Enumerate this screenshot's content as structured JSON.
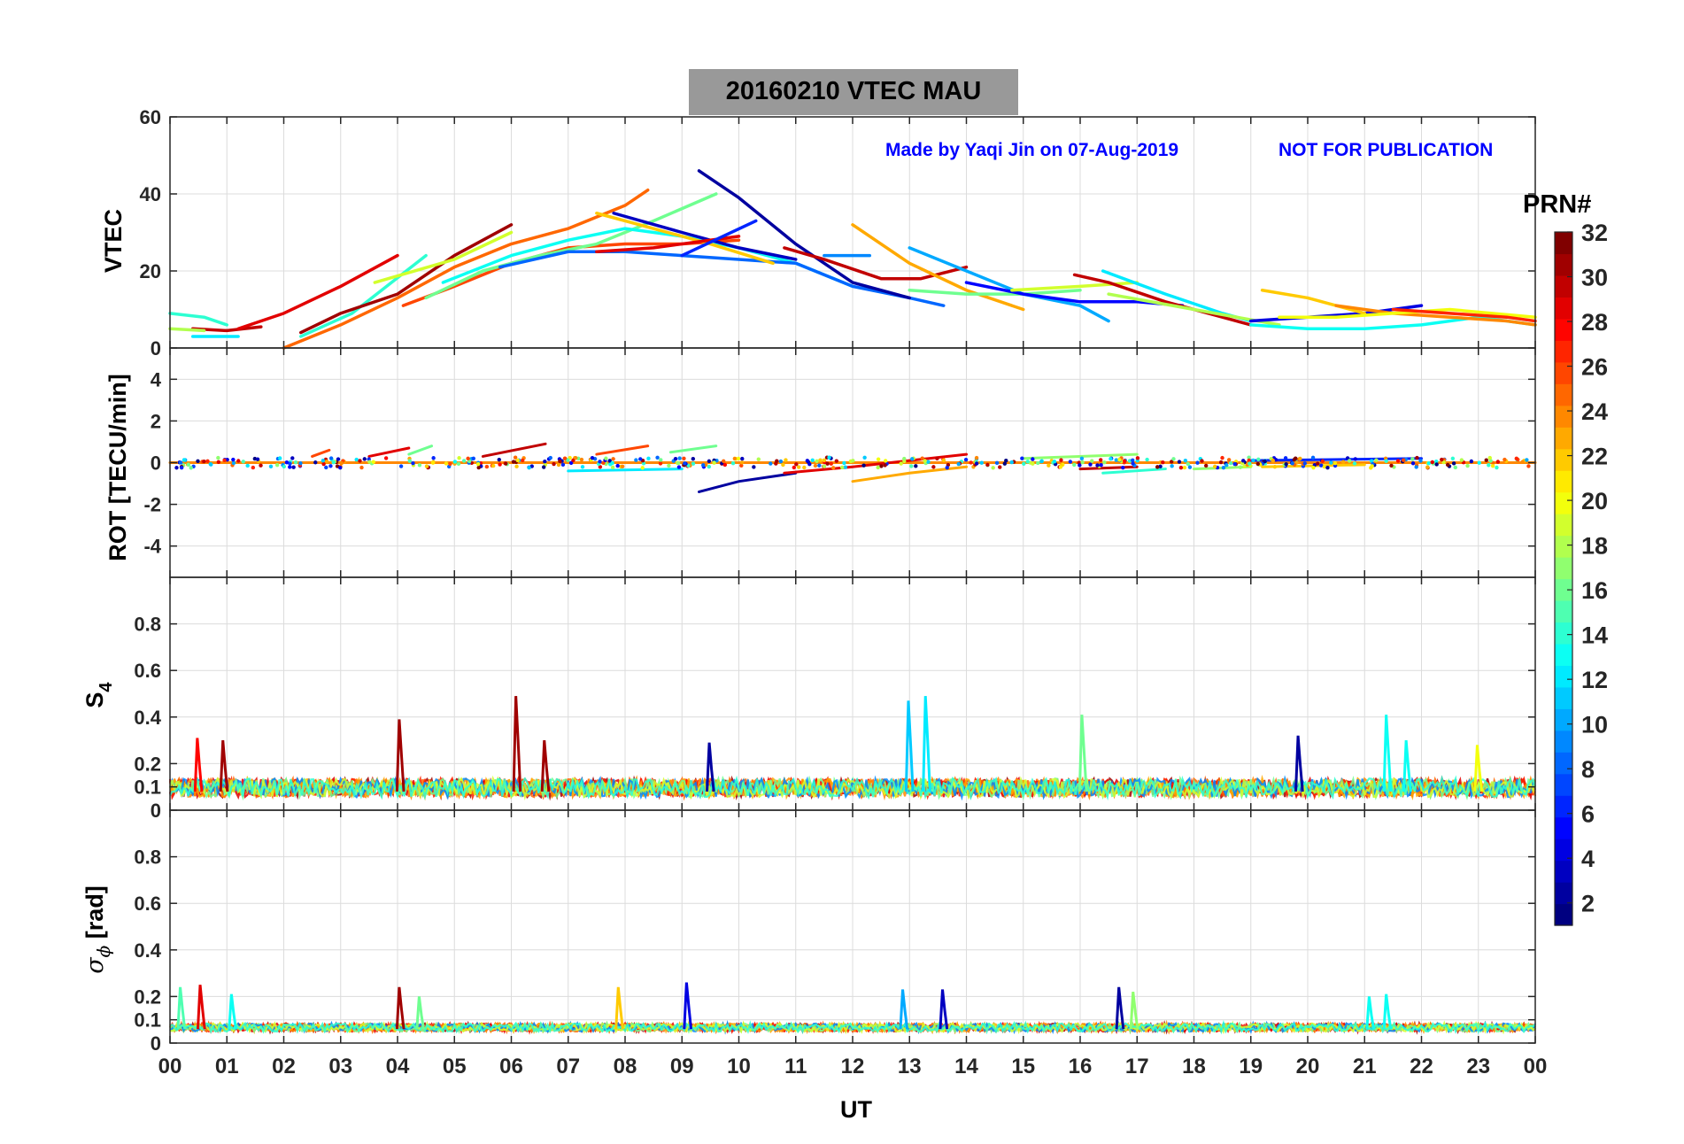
{
  "title": "20160210    VTEC  MAU",
  "credit": "Made by Yaqi Jin on 07-Aug-2019",
  "disclaimer": "NOT FOR PUBLICATION",
  "colorbar": {
    "label": "PRN#",
    "ticks": [
      "2",
      "4",
      "6",
      "8",
      "10",
      "12",
      "14",
      "16",
      "18",
      "20",
      "22",
      "24",
      "26",
      "28",
      "30",
      "32"
    ],
    "range": [
      1,
      32
    ],
    "colormap": "jet"
  },
  "chart_data": {
    "type": "line",
    "xlabel": "UT",
    "xlim": [
      0,
      24
    ],
    "xticks": [
      "00",
      "01",
      "02",
      "03",
      "04",
      "05",
      "06",
      "07",
      "08",
      "09",
      "10",
      "11",
      "12",
      "13",
      "14",
      "15",
      "16",
      "17",
      "18",
      "19",
      "20",
      "21",
      "22",
      "23",
      "00"
    ],
    "panels": [
      {
        "name": "vtec",
        "ylabel": "VTEC",
        "ylim": [
          0,
          60
        ],
        "yticks": [
          "0",
          "20",
          "40",
          "60"
        ],
        "ytick_values": [
          0,
          20,
          40,
          60
        ],
        "series": [
          {
            "prn": 30,
            "x": [
              0.4,
              1.0,
              1.6
            ],
            "y": [
              5,
              4.5,
              5.5
            ]
          },
          {
            "prn": 14,
            "x": [
              0.0,
              0.6,
              1.0
            ],
            "y": [
              9,
              8,
              6
            ]
          },
          {
            "prn": 18,
            "x": [
              0.0,
              0.6
            ],
            "y": [
              5,
              4.5
            ]
          },
          {
            "prn": 12,
            "x": [
              0.4,
              1.2
            ],
            "y": [
              3,
              3
            ]
          },
          {
            "prn": 29,
            "x": [
              1.2,
              2.0,
              3.0,
              4.0
            ],
            "y": [
              5,
              9,
              16,
              24
            ]
          },
          {
            "prn": 14,
            "x": [
              2.3,
              3.2,
              4.5
            ],
            "y": [
              3,
              9,
              24
            ]
          },
          {
            "prn": 31,
            "x": [
              2.3,
              3.0,
              4.0,
              5.0,
              6.0
            ],
            "y": [
              4,
              9,
              14,
              24,
              32
            ]
          },
          {
            "prn": 25,
            "x": [
              2.0,
              3.0,
              4.0,
              5.0,
              6.0,
              7.0,
              8.0,
              8.4
            ],
            "y": [
              0,
              6,
              13,
              21,
              27,
              31,
              37,
              41
            ]
          },
          {
            "prn": 26,
            "x": [
              4.1,
              5.0,
              6.0,
              7.0,
              8.0,
              9.0,
              10.0
            ],
            "y": [
              11,
              16,
              22,
              26,
              27,
              27,
              28
            ]
          },
          {
            "prn": 19,
            "x": [
              3.6,
              5.0,
              6.0
            ],
            "y": [
              17,
              23,
              30
            ]
          },
          {
            "prn": 16,
            "x": [
              4.5,
              5.5,
              6.5,
              7.5,
              8.5,
              9.6
            ],
            "y": [
              13,
              20,
              24,
              27,
              33,
              40
            ]
          },
          {
            "prn": 13,
            "x": [
              4.8,
              6.0,
              7.0,
              8.0,
              9.0,
              10.0,
              11.0,
              12.0
            ],
            "y": [
              17,
              24,
              28,
              31,
              29,
              26,
              22,
              16
            ]
          },
          {
            "prn": 8,
            "x": [
              5.8,
              7.0,
              8.0,
              9.0,
              10.0,
              11.0,
              12.0,
              13.0,
              13.6
            ],
            "y": [
              21,
              25,
              25,
              24,
              23,
              22,
              16,
              13,
              11
            ]
          },
          {
            "prn": 22,
            "x": [
              7.5,
              8.5,
              9.5,
              10.6
            ],
            "y": [
              35,
              31,
              27,
              22
            ]
          },
          {
            "prn": 3,
            "x": [
              7.8,
              9.0,
              10.0,
              11.0
            ],
            "y": [
              35,
              30,
              26,
              23
            ]
          },
          {
            "prn": 29,
            "x": [
              7.5,
              8.5,
              10.0
            ],
            "y": [
              25,
              26,
              29
            ]
          },
          {
            "prn": 6,
            "x": [
              9.0,
              10.3
            ],
            "y": [
              24,
              33
            ]
          },
          {
            "prn": 2,
            "x": [
              9.3,
              10.0,
              11.0,
              12.0,
              13.0
            ],
            "y": [
              46,
              39,
              27,
              17,
              13
            ]
          },
          {
            "prn": 30,
            "x": [
              10.8,
              11.5,
              12.5,
              13.2,
              14.0
            ],
            "y": [
              26,
              23,
              18,
              18,
              21
            ]
          },
          {
            "prn": 9,
            "x": [
              11.5,
              12.3
            ],
            "y": [
              24,
              24
            ]
          },
          {
            "prn": 23,
            "x": [
              12.0,
              13.0,
              14.0,
              15.0
            ],
            "y": [
              32,
              22,
              15,
              10
            ]
          },
          {
            "prn": 10,
            "x": [
              13.0,
              14.0,
              15.0,
              16.0,
              16.5
            ],
            "y": [
              26,
              20,
              14,
              11,
              7
            ]
          },
          {
            "prn": 16,
            "x": [
              13.0,
              14.0,
              15.0,
              16.0
            ],
            "y": [
              15,
              14,
              14,
              15
            ]
          },
          {
            "prn": 5,
            "x": [
              14.0,
              15.0,
              16.0,
              17.0,
              17.8
            ],
            "y": [
              17,
              14,
              12,
              12,
              11
            ]
          },
          {
            "prn": 19,
            "x": [
              14.8,
              16.0,
              17.0
            ],
            "y": [
              15,
              16,
              17
            ]
          },
          {
            "prn": 30,
            "x": [
              15.9,
              16.5,
              17.5,
              18.5,
              19.0
            ],
            "y": [
              19,
              17,
              12,
              8,
              6
            ]
          },
          {
            "prn": 12,
            "x": [
              16.4,
              17.5,
              18.5,
              19.0
            ],
            "y": [
              20,
              14,
              9,
              7
            ]
          },
          {
            "prn": 18,
            "x": [
              16.5,
              18.0,
              19.5
            ],
            "y": [
              14,
              10,
              6
            ]
          },
          {
            "prn": 4,
            "x": [
              19.0,
              20.0,
              21.0,
              22.0
            ],
            "y": [
              7,
              8,
              9,
              11
            ]
          },
          {
            "prn": 22,
            "x": [
              19.2,
              20.0,
              21.0
            ],
            "y": [
              15,
              13,
              9
            ]
          },
          {
            "prn": 13,
            "x": [
              19.0,
              20.0,
              21.0,
              22.0,
              23.0,
              24.0
            ],
            "y": [
              6,
              5,
              5,
              6,
              8,
              6
            ]
          },
          {
            "prn": 24,
            "x": [
              20.5,
              21.5,
              22.5,
              23.5,
              24.0
            ],
            "y": [
              11,
              9,
              8,
              7,
              6
            ]
          },
          {
            "prn": 20,
            "x": [
              19.5,
              20.5,
              21.5,
              22.5,
              24.0
            ],
            "y": [
              8,
              8,
              9,
              10,
              8
            ]
          },
          {
            "prn": 27,
            "x": [
              21.5,
              22.5,
              23.5,
              24.0
            ],
            "y": [
              10,
              9,
              8,
              7
            ]
          }
        ]
      },
      {
        "name": "rot",
        "ylabel": "ROT [TECU/min]",
        "ylim": [
          -5.5,
          5.5
        ],
        "yticks": [
          "-4",
          "-2",
          "0",
          "2",
          "4"
        ],
        "ytick_values": [
          -4,
          -2,
          0,
          2,
          4
        ],
        "series": [
          {
            "prn": 24,
            "x": [
              0.0,
              24.0
            ],
            "y": [
              0.0,
              0.0
            ]
          },
          {
            "prn": 26,
            "x": [
              2.5,
              2.8
            ],
            "y": [
              0.3,
              0.6
            ]
          },
          {
            "prn": 29,
            "x": [
              3.5,
              4.2
            ],
            "y": [
              0.3,
              0.7
            ]
          },
          {
            "prn": 16,
            "x": [
              4.2,
              4.6
            ],
            "y": [
              0.4,
              0.8
            ]
          },
          {
            "prn": 30,
            "x": [
              5.5,
              6.6
            ],
            "y": [
              0.3,
              0.9
            ]
          },
          {
            "prn": 26,
            "x": [
              7.5,
              8.4
            ],
            "y": [
              0.4,
              0.8
            ]
          },
          {
            "prn": 16,
            "x": [
              8.8,
              9.6
            ],
            "y": [
              0.5,
              0.8
            ]
          },
          {
            "prn": 12,
            "x": [
              7.0,
              9.0
            ],
            "y": [
              -0.4,
              -0.3
            ]
          },
          {
            "prn": 2,
            "x": [
              9.3,
              10.0,
              11.0
            ],
            "y": [
              -1.4,
              -0.9,
              -0.5
            ]
          },
          {
            "prn": 29,
            "x": [
              10.8,
              12.0,
              14.0
            ],
            "y": [
              -0.5,
              -0.2,
              0.4
            ]
          },
          {
            "prn": 23,
            "x": [
              12.0,
              13.0,
              14.0
            ],
            "y": [
              -0.9,
              -0.5,
              -0.2
            ]
          },
          {
            "prn": 17,
            "x": [
              15.0,
              17.0
            ],
            "y": [
              0.2,
              0.4
            ]
          },
          {
            "prn": 30,
            "x": [
              16.0,
              17.0
            ],
            "y": [
              -0.3,
              -0.2
            ]
          },
          {
            "prn": 14,
            "x": [
              16.4,
              17.5
            ],
            "y": [
              -0.5,
              -0.3
            ]
          },
          {
            "prn": 17,
            "x": [
              18.0,
              19.0
            ],
            "y": [
              -0.3,
              -0.2
            ]
          },
          {
            "prn": 22,
            "x": [
              19.2,
              21.0
            ],
            "y": [
              -0.2,
              -0.1
            ]
          },
          {
            "prn": 6,
            "x": [
              19.0,
              22.0
            ],
            "y": [
              0.1,
              0.2
            ]
          }
        ]
      },
      {
        "name": "s4",
        "ylabel": "S4",
        "ylim": [
          0,
          1
        ],
        "yticks": [
          "0",
          "0.1",
          "0.2",
          "0.4",
          "0.6",
          "0.8"
        ],
        "ytick_values": [
          0,
          0.1,
          0.2,
          0.4,
          0.6,
          0.8
        ],
        "baseline": 0.08,
        "spikes": [
          {
            "prn": 28,
            "x": 0.5,
            "y": 0.31
          },
          {
            "prn": 31,
            "x": 0.95,
            "y": 0.3
          },
          {
            "prn": 31,
            "x": 4.05,
            "y": 0.39
          },
          {
            "prn": 31,
            "x": 6.1,
            "y": 0.49
          },
          {
            "prn": 31,
            "x": 6.6,
            "y": 0.3
          },
          {
            "prn": 2,
            "x": 9.5,
            "y": 0.29
          },
          {
            "prn": 11,
            "x": 13.0,
            "y": 0.47
          },
          {
            "prn": 12,
            "x": 13.3,
            "y": 0.49
          },
          {
            "prn": 16,
            "x": 16.05,
            "y": 0.41
          },
          {
            "prn": 2,
            "x": 19.85,
            "y": 0.32
          },
          {
            "prn": 13,
            "x": 21.4,
            "y": 0.41
          },
          {
            "prn": 13,
            "x": 21.75,
            "y": 0.3
          },
          {
            "prn": 20,
            "x": 23.0,
            "y": 0.28
          }
        ]
      },
      {
        "name": "sigma_phi",
        "ylabel": "σ ϕ [rad]",
        "ylim": [
          0,
          1
        ],
        "yticks": [
          "0",
          "0.1",
          "0.2",
          "0.4",
          "0.6",
          "0.8"
        ],
        "ytick_values": [
          0,
          0.1,
          0.2,
          0.4,
          0.6,
          0.8
        ],
        "baseline": 0.06,
        "spikes": [
          {
            "prn": 15,
            "x": 0.2,
            "y": 0.24
          },
          {
            "prn": 29,
            "x": 0.55,
            "y": 0.25
          },
          {
            "prn": 13,
            "x": 1.1,
            "y": 0.21
          },
          {
            "prn": 31,
            "x": 4.05,
            "y": 0.24
          },
          {
            "prn": 16,
            "x": 4.4,
            "y": 0.2
          },
          {
            "prn": 22,
            "x": 7.9,
            "y": 0.24
          },
          {
            "prn": 4,
            "x": 9.1,
            "y": 0.26
          },
          {
            "prn": 10,
            "x": 12.9,
            "y": 0.23
          },
          {
            "prn": 3,
            "x": 13.6,
            "y": 0.23
          },
          {
            "prn": 2,
            "x": 16.7,
            "y": 0.24
          },
          {
            "prn": 17,
            "x": 16.95,
            "y": 0.22
          },
          {
            "prn": 13,
            "x": 21.1,
            "y": 0.2
          },
          {
            "prn": 13,
            "x": 21.4,
            "y": 0.21
          }
        ]
      }
    ]
  }
}
